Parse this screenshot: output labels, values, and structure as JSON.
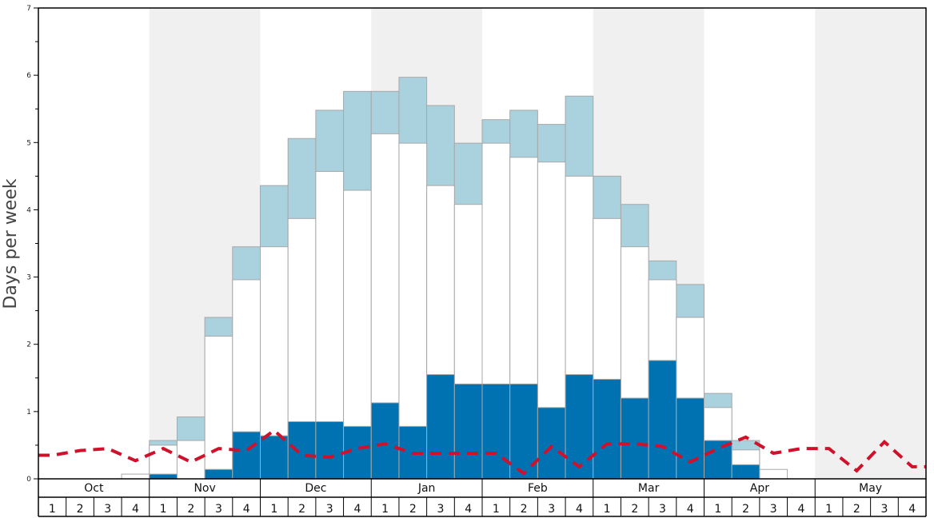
{
  "chart_data": {
    "type": "bar",
    "ylabel": "Days per week",
    "ylim": [
      0,
      7
    ],
    "yticks": [
      "0",
      "1",
      "2",
      "3",
      "4",
      "5",
      "6",
      "7"
    ],
    "months": [
      "Oct",
      "Nov",
      "Dec",
      "Jan",
      "Feb",
      "Mar",
      "Apr",
      "May"
    ],
    "week_labels": [
      "1",
      "2",
      "3",
      "4"
    ],
    "shaded_months": [
      "Nov",
      "Jan",
      "Mar",
      "May"
    ],
    "stacked_totals": [
      {
        "name": "dark",
        "color": "#0072b2",
        "values": [
          0,
          0,
          0,
          0,
          0.07,
          0,
          0.14,
          0.7,
          0.64,
          0.85,
          0.85,
          0.78,
          1.13,
          0.78,
          1.55,
          1.41,
          1.41,
          1.41,
          1.06,
          1.55,
          1.48,
          1.2,
          1.76,
          1.2,
          0.57,
          0.21,
          0,
          0,
          0,
          0,
          0,
          0
        ]
      },
      {
        "name": "white",
        "color": "#ffffff",
        "values": [
          0,
          0,
          0,
          0.07,
          0.5,
          0.57,
          2.12,
          2.96,
          3.45,
          3.87,
          4.57,
          4.29,
          5.13,
          4.99,
          4.36,
          4.08,
          4.99,
          4.78,
          4.71,
          4.5,
          3.87,
          3.45,
          2.96,
          2.4,
          1.06,
          0.43,
          0.14,
          0,
          0,
          0,
          0,
          0
        ]
      },
      {
        "name": "light",
        "color": "#aad1de",
        "values": [
          0,
          0,
          0,
          0,
          0.57,
          0.92,
          2.4,
          3.45,
          4.36,
          5.06,
          5.48,
          5.76,
          5.76,
          5.97,
          5.55,
          4.99,
          5.34,
          5.48,
          5.27,
          5.69,
          4.5,
          4.08,
          3.24,
          2.89,
          1.27,
          0.57,
          0,
          0,
          0,
          0,
          0,
          0
        ]
      }
    ],
    "line": {
      "color": "#d0112b",
      "values": [
        0.35,
        0.42,
        0.45,
        0.27,
        0.45,
        0.25,
        0.45,
        0.42,
        0.72,
        0.35,
        0.32,
        0.45,
        0.52,
        0.38,
        0.38,
        0.38,
        0.38,
        0.08,
        0.48,
        0.18,
        0.52,
        0.52,
        0.48,
        0.25,
        0.45,
        0.62,
        0.38,
        0.45,
        0.45,
        0.12,
        0.55,
        0.18
      ]
    }
  }
}
